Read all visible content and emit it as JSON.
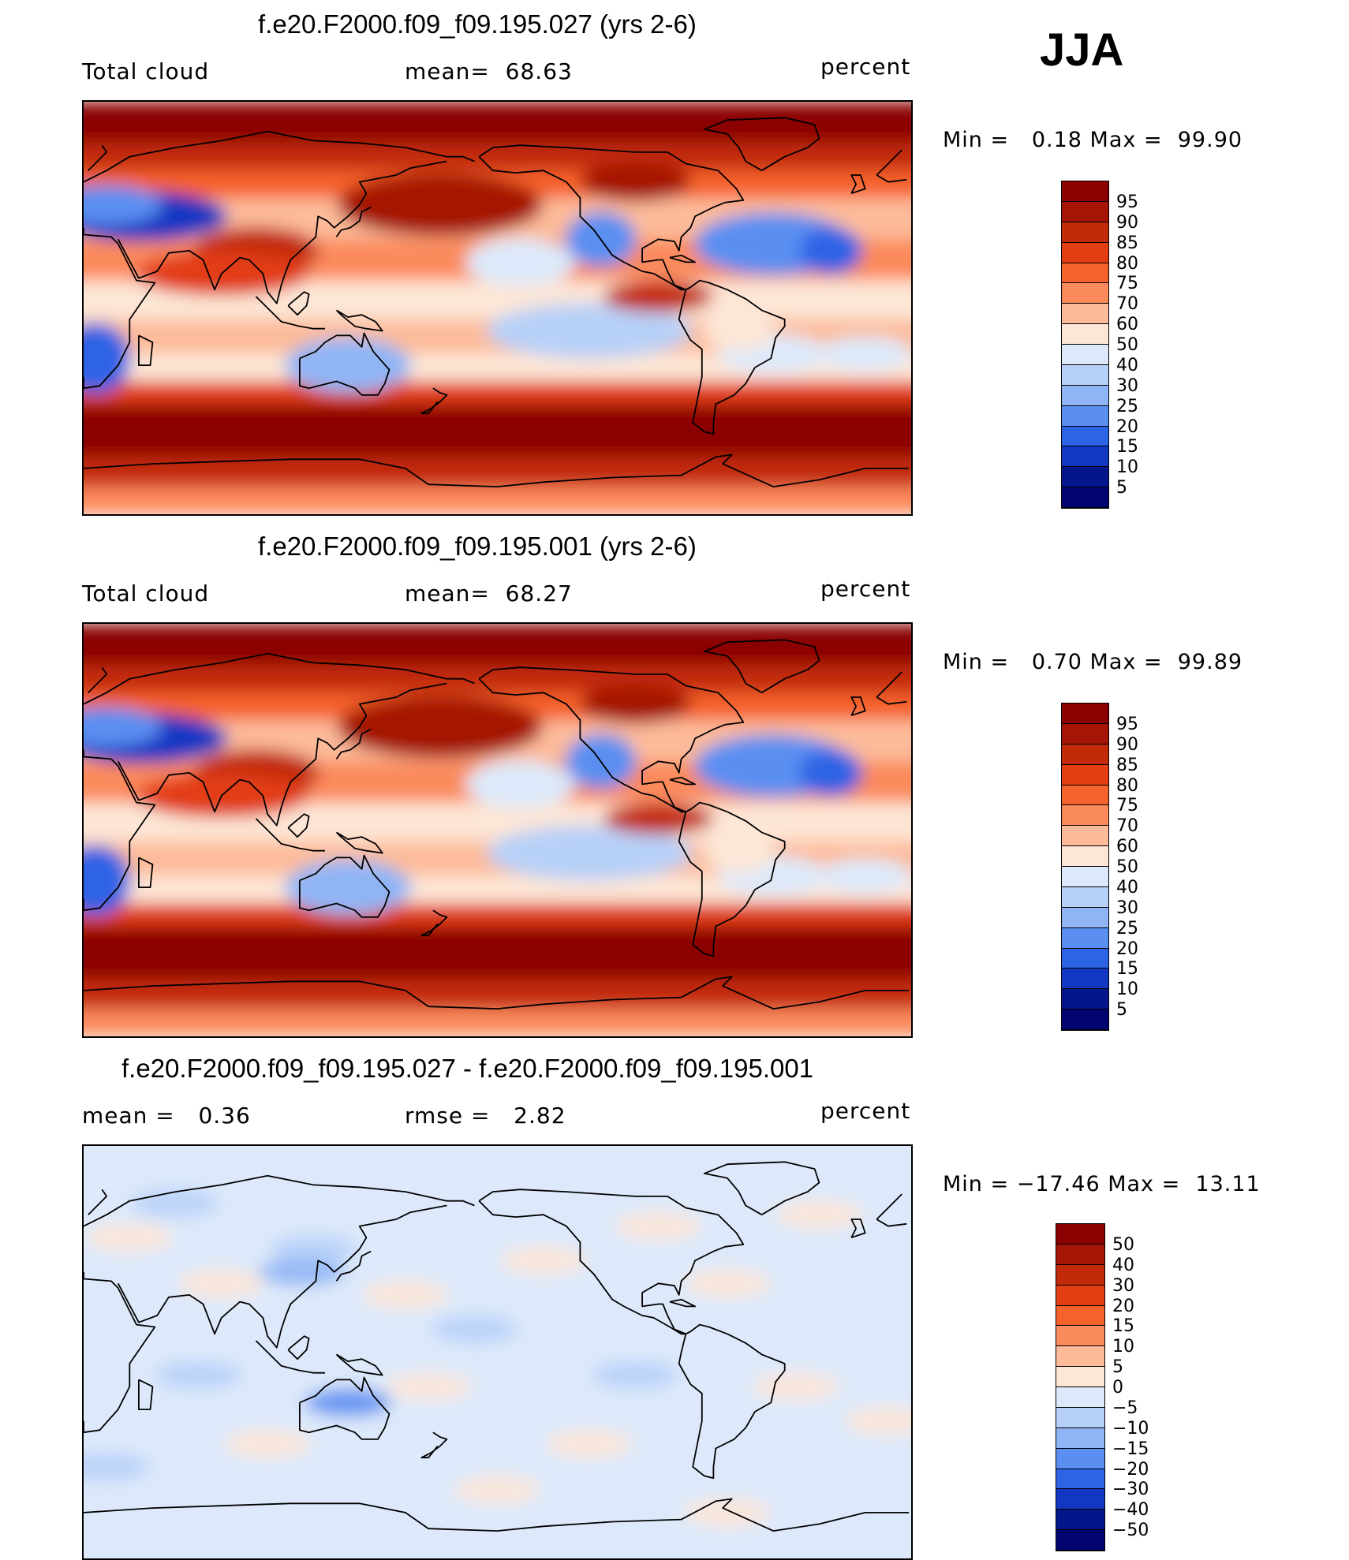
{
  "season": "JJA",
  "panels": [
    {
      "title": "f.e20.F2000.f09_f09.195.027 (yrs 2-6)",
      "left_label": "Total cloud",
      "center_label": "mean=  68.63",
      "right_label": "percent",
      "minmax": "Min =   0.18 Max =  99.90",
      "palette": "abs",
      "map_kind": "abs",
      "colorbar_levels": [
        "95",
        "90",
        "85",
        "80",
        "75",
        "70",
        "60",
        "50",
        "40",
        "30",
        "25",
        "20",
        "15",
        "10",
        "5"
      ]
    },
    {
      "title": "f.e20.F2000.f09_f09.195.001 (yrs 2-6)",
      "left_label": "Total cloud",
      "center_label": "mean=  68.27",
      "right_label": "percent",
      "minmax": "Min =   0.70 Max =  99.89",
      "palette": "abs",
      "map_kind": "abs",
      "colorbar_levels": [
        "95",
        "90",
        "85",
        "80",
        "75",
        "70",
        "60",
        "50",
        "40",
        "30",
        "25",
        "20",
        "15",
        "10",
        "5"
      ]
    },
    {
      "title": "f.e20.F2000.f09_f09.195.027 - f.e20.F2000.f09_f09.195.001",
      "left_label": "mean =   0.36",
      "center_label": "rmse =   2.82",
      "right_label": "percent",
      "minmax": "Min = −17.46 Max =  13.11",
      "palette": "diff",
      "map_kind": "diff",
      "colorbar_levels": [
        "50",
        "40",
        "30",
        "20",
        "15",
        "10",
        "5",
        "0",
        "−5",
        "−10",
        "−15",
        "−20",
        "−30",
        "−40",
        "−50"
      ]
    }
  ],
  "palettes": {
    "abs": [
      "#8b0000",
      "#a51505",
      "#c32a0a",
      "#e23e12",
      "#f6622b",
      "#fb8a5c",
      "#fdbb9a",
      "#fde6d6",
      "#dde9fa",
      "#b7d0f8",
      "#8fb5f5",
      "#5a8ff1",
      "#2d63e5",
      "#1237c2",
      "#04168c",
      "#020570"
    ],
    "diff": [
      "#8b0000",
      "#a51505",
      "#c32a0a",
      "#e23e12",
      "#f6622b",
      "#fb8a5c",
      "#fdbb9a",
      "#fde6d6",
      "#dde9fa",
      "#b7d0f8",
      "#8fb5f5",
      "#5a8ff1",
      "#2d63e5",
      "#1237c2",
      "#04168c",
      "#020570"
    ]
  }
}
